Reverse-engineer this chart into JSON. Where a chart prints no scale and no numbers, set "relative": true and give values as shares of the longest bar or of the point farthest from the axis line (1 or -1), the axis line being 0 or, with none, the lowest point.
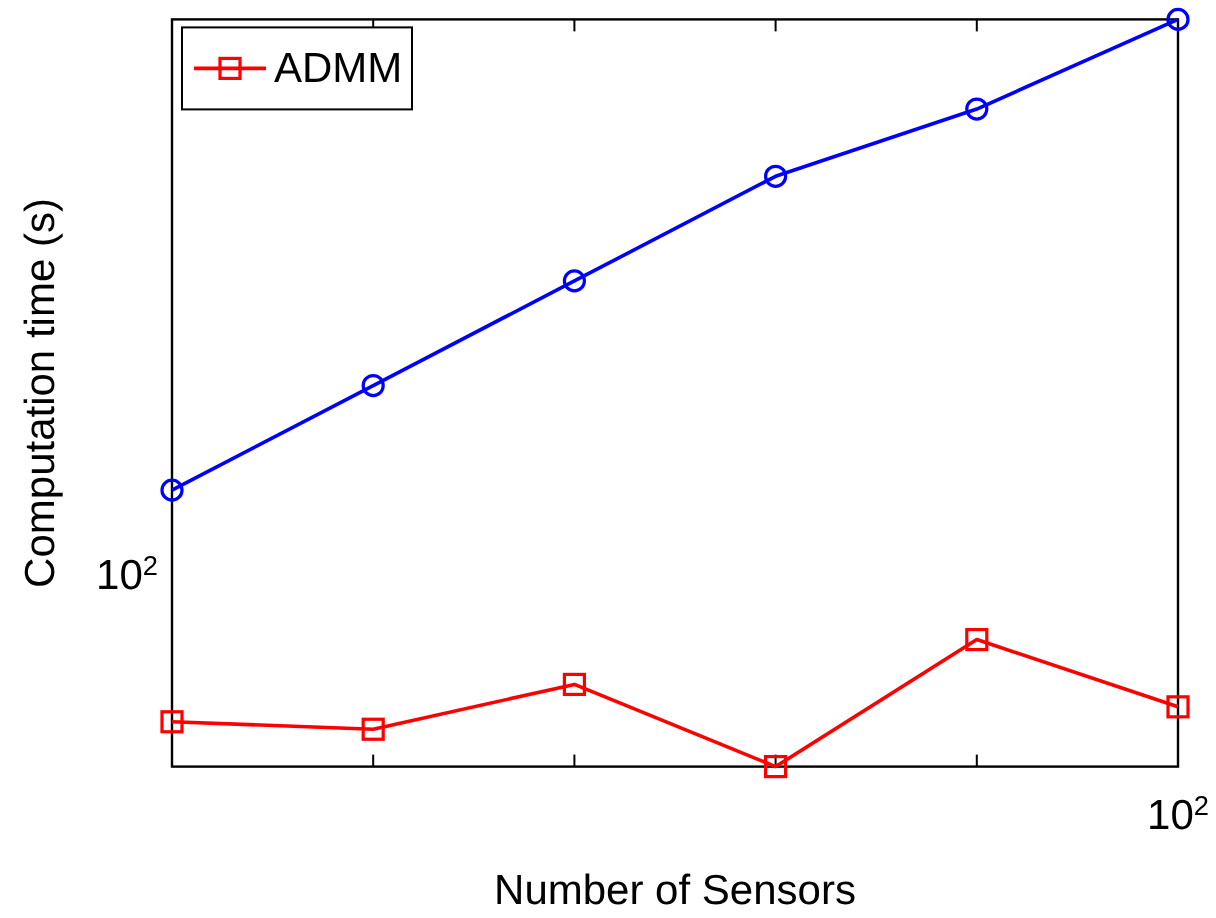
{
  "chart_data": {
    "type": "line",
    "relative": true,
    "xlabel": "Number of Sensors",
    "ylabel": "Computation time (s)",
    "categories": [
      null,
      null,
      null,
      null,
      null,
      null
    ],
    "series": [
      {
        "color": "#0000ff",
        "marker": "circle",
        "values": [
          0.37,
          0.51,
          0.65,
          0.79,
          0.88,
          1
        ]
      },
      {
        "name": "ADMM",
        "color": "#ff0000",
        "marker": "square",
        "values": [
          0.06,
          0.05,
          0.11,
          0,
          0.17,
          0.08
        ]
      }
    ],
    "annotations": [
      "10$^{2}$",
      "10$^{2}$"
    ],
    "legend": "top left"
  }
}
